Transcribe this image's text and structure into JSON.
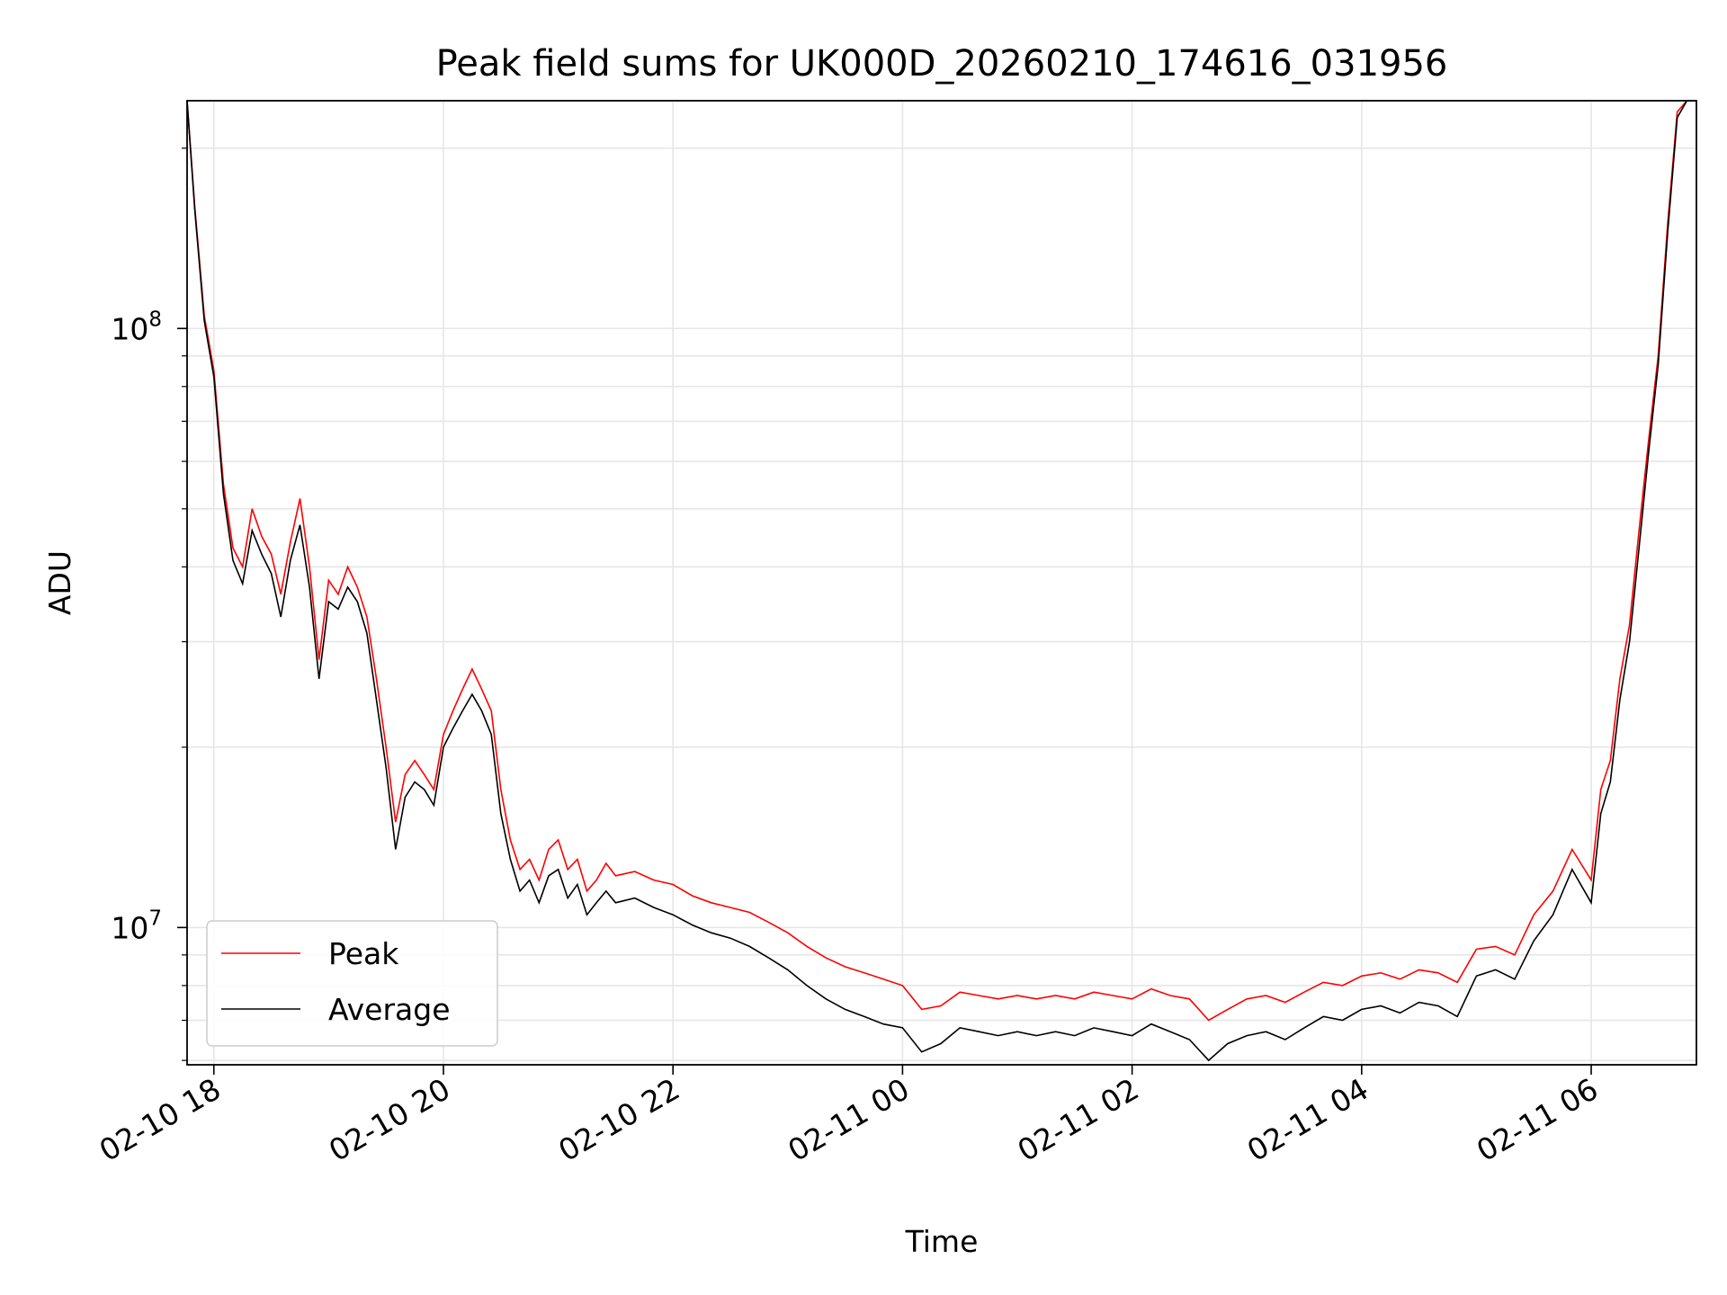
{
  "chart_data": {
    "type": "line",
    "title": "Peak field sums for UK000D_20260210_174616_031956",
    "xlabel": "Time",
    "ylabel": "ADU",
    "yscale": "log",
    "ylim": [
      5900000,
      240000000
    ],
    "xlim": [
      "2026-02-10 17:46",
      "2026-02-11 06:55"
    ],
    "grid": true,
    "legend_position": "lower-left",
    "x_ticks": [
      {
        "t": "2026-02-10 18:00",
        "label": "02-10 18"
      },
      {
        "t": "2026-02-10 20:00",
        "label": "02-10 20"
      },
      {
        "t": "2026-02-10 22:00",
        "label": "02-10 22"
      },
      {
        "t": "2026-02-11 00:00",
        "label": "02-11 00"
      },
      {
        "t": "2026-02-11 02:00",
        "label": "02-11 02"
      },
      {
        "t": "2026-02-11 04:00",
        "label": "02-11 04"
      },
      {
        "t": "2026-02-11 06:00",
        "label": "02-11 06"
      }
    ],
    "y_major_ticks": [
      {
        "value": 10000000,
        "base": "10",
        "exp": "7"
      },
      {
        "value": 100000000,
        "base": "10",
        "exp": "8"
      }
    ],
    "series": [
      {
        "name": "Peak",
        "color": "#ff0000",
        "x": [
          "2026-02-10 17:46",
          "2026-02-10 17:50",
          "2026-02-10 17:55",
          "2026-02-10 18:00",
          "2026-02-10 18:05",
          "2026-02-10 18:10",
          "2026-02-10 18:15",
          "2026-02-10 18:20",
          "2026-02-10 18:25",
          "2026-02-10 18:30",
          "2026-02-10 18:35",
          "2026-02-10 18:40",
          "2026-02-10 18:45",
          "2026-02-10 18:50",
          "2026-02-10 18:55",
          "2026-02-10 19:00",
          "2026-02-10 19:05",
          "2026-02-10 19:10",
          "2026-02-10 19:15",
          "2026-02-10 19:20",
          "2026-02-10 19:25",
          "2026-02-10 19:30",
          "2026-02-10 19:35",
          "2026-02-10 19:40",
          "2026-02-10 19:45",
          "2026-02-10 19:50",
          "2026-02-10 19:55",
          "2026-02-10 20:00",
          "2026-02-10 20:05",
          "2026-02-10 20:10",
          "2026-02-10 20:15",
          "2026-02-10 20:20",
          "2026-02-10 20:25",
          "2026-02-10 20:30",
          "2026-02-10 20:35",
          "2026-02-10 20:40",
          "2026-02-10 20:45",
          "2026-02-10 20:50",
          "2026-02-10 20:55",
          "2026-02-10 21:00",
          "2026-02-10 21:05",
          "2026-02-10 21:10",
          "2026-02-10 21:15",
          "2026-02-10 21:20",
          "2026-02-10 21:25",
          "2026-02-10 21:30",
          "2026-02-10 21:40",
          "2026-02-10 21:50",
          "2026-02-10 22:00",
          "2026-02-10 22:10",
          "2026-02-10 22:20",
          "2026-02-10 22:30",
          "2026-02-10 22:40",
          "2026-02-10 22:50",
          "2026-02-10 23:00",
          "2026-02-10 23:10",
          "2026-02-10 23:20",
          "2026-02-10 23:30",
          "2026-02-10 23:40",
          "2026-02-10 23:50",
          "2026-02-11 00:00",
          "2026-02-11 00:10",
          "2026-02-11 00:20",
          "2026-02-11 00:30",
          "2026-02-11 00:40",
          "2026-02-11 00:50",
          "2026-02-11 01:00",
          "2026-02-11 01:10",
          "2026-02-11 01:20",
          "2026-02-11 01:30",
          "2026-02-11 01:40",
          "2026-02-11 01:50",
          "2026-02-11 02:00",
          "2026-02-11 02:10",
          "2026-02-11 02:20",
          "2026-02-11 02:30",
          "2026-02-11 02:40",
          "2026-02-11 02:50",
          "2026-02-11 03:00",
          "2026-02-11 03:10",
          "2026-02-11 03:20",
          "2026-02-11 03:30",
          "2026-02-11 03:40",
          "2026-02-11 03:50",
          "2026-02-11 04:00",
          "2026-02-11 04:10",
          "2026-02-11 04:20",
          "2026-02-11 04:30",
          "2026-02-11 04:40",
          "2026-02-11 04:50",
          "2026-02-11 05:00",
          "2026-02-11 05:10",
          "2026-02-11 05:20",
          "2026-02-11 05:30",
          "2026-02-11 05:40",
          "2026-02-11 05:50",
          "2026-02-11 06:00",
          "2026-02-11 06:05",
          "2026-02-11 06:10",
          "2026-02-11 06:15",
          "2026-02-11 06:20",
          "2026-02-11 06:25",
          "2026-02-11 06:30",
          "2026-02-11 06:35",
          "2026-02-11 06:40",
          "2026-02-11 06:45",
          "2026-02-11 06:50",
          "2026-02-11 06:55"
        ],
        "y": [
          240000000,
          160000000,
          105000000,
          85000000,
          55000000,
          43000000,
          40000000,
          50000000,
          45000000,
          42000000,
          36000000,
          44000000,
          52000000,
          40000000,
          28000000,
          38000000,
          36000000,
          40000000,
          37000000,
          33000000,
          26000000,
          20000000,
          15000000,
          18000000,
          19000000,
          18000000,
          17000000,
          21000000,
          23000000,
          25000000,
          27000000,
          25000000,
          23000000,
          17000000,
          14000000,
          12500000,
          13000000,
          12000000,
          13500000,
          14000000,
          12500000,
          13000000,
          11500000,
          12000000,
          12800000,
          12200000,
          12400000,
          12000000,
          11800000,
          11300000,
          11000000,
          10800000,
          10600000,
          10200000,
          9800000,
          9300000,
          8900000,
          8600000,
          8400000,
          8200000,
          8000000,
          7300000,
          7400000,
          7800000,
          7700000,
          7600000,
          7700000,
          7600000,
          7700000,
          7600000,
          7800000,
          7700000,
          7600000,
          7900000,
          7700000,
          7600000,
          7000000,
          7300000,
          7600000,
          7700000,
          7500000,
          7800000,
          8100000,
          8000000,
          8300000,
          8400000,
          8200000,
          8500000,
          8400000,
          8100000,
          9200000,
          9300000,
          9000000,
          10500000,
          11500000,
          13500000,
          12000000,
          17000000,
          19000000,
          26000000,
          32000000,
          46000000,
          65000000,
          90000000,
          150000000,
          230000000,
          240000000,
          240000000
        ]
      },
      {
        "name": "Average",
        "color": "#000000",
        "x": [
          "2026-02-10 17:46",
          "2026-02-10 17:50",
          "2026-02-10 17:55",
          "2026-02-10 18:00",
          "2026-02-10 18:05",
          "2026-02-10 18:10",
          "2026-02-10 18:15",
          "2026-02-10 18:20",
          "2026-02-10 18:25",
          "2026-02-10 18:30",
          "2026-02-10 18:35",
          "2026-02-10 18:40",
          "2026-02-10 18:45",
          "2026-02-10 18:50",
          "2026-02-10 18:55",
          "2026-02-10 19:00",
          "2026-02-10 19:05",
          "2026-02-10 19:10",
          "2026-02-10 19:15",
          "2026-02-10 19:20",
          "2026-02-10 19:25",
          "2026-02-10 19:30",
          "2026-02-10 19:35",
          "2026-02-10 19:40",
          "2026-02-10 19:45",
          "2026-02-10 19:50",
          "2026-02-10 19:55",
          "2026-02-10 20:00",
          "2026-02-10 20:05",
          "2026-02-10 20:10",
          "2026-02-10 20:15",
          "2026-02-10 20:20",
          "2026-02-10 20:25",
          "2026-02-10 20:30",
          "2026-02-10 20:35",
          "2026-02-10 20:40",
          "2026-02-10 20:45",
          "2026-02-10 20:50",
          "2026-02-10 20:55",
          "2026-02-10 21:00",
          "2026-02-10 21:05",
          "2026-02-10 21:10",
          "2026-02-10 21:15",
          "2026-02-10 21:20",
          "2026-02-10 21:25",
          "2026-02-10 21:30",
          "2026-02-10 21:40",
          "2026-02-10 21:50",
          "2026-02-10 22:00",
          "2026-02-10 22:10",
          "2026-02-10 22:20",
          "2026-02-10 22:30",
          "2026-02-10 22:40",
          "2026-02-10 22:50",
          "2026-02-10 23:00",
          "2026-02-10 23:10",
          "2026-02-10 23:20",
          "2026-02-10 23:30",
          "2026-02-10 23:40",
          "2026-02-10 23:50",
          "2026-02-11 00:00",
          "2026-02-11 00:10",
          "2026-02-11 00:20",
          "2026-02-11 00:30",
          "2026-02-11 00:40",
          "2026-02-11 00:50",
          "2026-02-11 01:00",
          "2026-02-11 01:10",
          "2026-02-11 01:20",
          "2026-02-11 01:30",
          "2026-02-11 01:40",
          "2026-02-11 01:50",
          "2026-02-11 02:00",
          "2026-02-11 02:10",
          "2026-02-11 02:20",
          "2026-02-11 02:30",
          "2026-02-11 02:40",
          "2026-02-11 02:50",
          "2026-02-11 03:00",
          "2026-02-11 03:10",
          "2026-02-11 03:20",
          "2026-02-11 03:30",
          "2026-02-11 03:40",
          "2026-02-11 03:50",
          "2026-02-11 04:00",
          "2026-02-11 04:10",
          "2026-02-11 04:20",
          "2026-02-11 04:30",
          "2026-02-11 04:40",
          "2026-02-11 04:50",
          "2026-02-11 05:00",
          "2026-02-11 05:10",
          "2026-02-11 05:20",
          "2026-02-11 05:30",
          "2026-02-11 05:40",
          "2026-02-11 05:50",
          "2026-02-11 06:00",
          "2026-02-11 06:05",
          "2026-02-11 06:10",
          "2026-02-11 06:15",
          "2026-02-11 06:20",
          "2026-02-11 06:25",
          "2026-02-11 06:30",
          "2026-02-11 06:35",
          "2026-02-11 06:40",
          "2026-02-11 06:45",
          "2026-02-11 06:50",
          "2026-02-11 06:55"
        ],
        "y": [
          240000000,
          158000000,
          103000000,
          83000000,
          53000000,
          41000000,
          37500000,
          46000000,
          42000000,
          39000000,
          33000000,
          41000000,
          47000000,
          37000000,
          26000000,
          35000000,
          34000000,
          37000000,
          35000000,
          31000000,
          24000000,
          18500000,
          13500000,
          16500000,
          17500000,
          17000000,
          16000000,
          20000000,
          21500000,
          23000000,
          24500000,
          23000000,
          21000000,
          15500000,
          13000000,
          11500000,
          12000000,
          11000000,
          12200000,
          12500000,
          11200000,
          11800000,
          10500000,
          11000000,
          11500000,
          11000000,
          11200000,
          10800000,
          10500000,
          10100000,
          9800000,
          9600000,
          9300000,
          8900000,
          8500000,
          8000000,
          7600000,
          7300000,
          7100000,
          6900000,
          6800000,
          6200000,
          6400000,
          6800000,
          6700000,
          6600000,
          6700000,
          6600000,
          6700000,
          6600000,
          6800000,
          6700000,
          6600000,
          6900000,
          6700000,
          6500000,
          6000000,
          6400000,
          6600000,
          6700000,
          6500000,
          6800000,
          7100000,
          7000000,
          7300000,
          7400000,
          7200000,
          7500000,
          7400000,
          7100000,
          8300000,
          8500000,
          8200000,
          9500000,
          10500000,
          12500000,
          11000000,
          15500000,
          17500000,
          24000000,
          30000000,
          43000000,
          62000000,
          87000000,
          145000000,
          225000000,
          240000000,
          240000000
        ]
      }
    ]
  }
}
